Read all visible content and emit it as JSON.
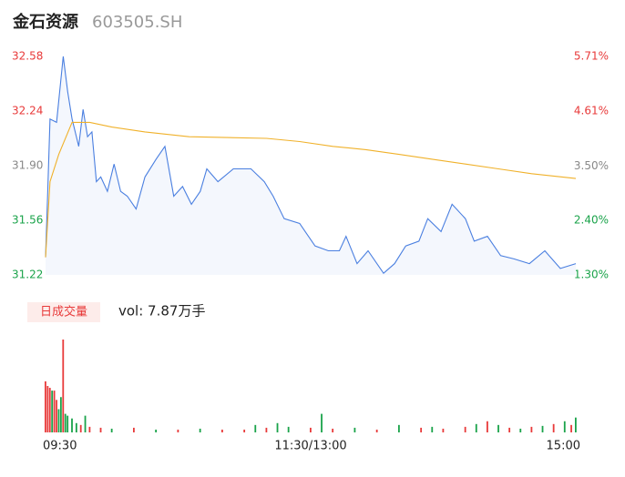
{
  "header": {
    "title": "金石资源",
    "code": "603505.SH"
  },
  "chart_data": [
    {
      "type": "line",
      "xlim": [
        0,
        240
      ],
      "xticks": [
        {
          "value": 0,
          "label": "09:30"
        },
        {
          "value": 120,
          "label": "11:30/13:00"
        },
        {
          "value": 240,
          "label": "15:00"
        }
      ],
      "ylim": [
        31.22,
        32.58
      ],
      "yticks": [
        32.58,
        32.24,
        31.9,
        31.56,
        31.22
      ],
      "ytick_labels": [
        "32.58",
        "32.24",
        "31.90",
        "31.56",
        "31.22"
      ],
      "ytick_colors": [
        "#e83a3a",
        "#e83a3a",
        "#888888",
        "#1aa34a",
        "#1aa34a"
      ],
      "y2lim": [
        1.3,
        5.71
      ],
      "y2ticks": [
        {
          "value": 5.71,
          "label": "5.71%"
        },
        {
          "value": 4.61,
          "label": "4.61%"
        },
        {
          "value": 3.5,
          "label": "3.50%"
        },
        {
          "value": 2.4,
          "label": "2.40%"
        },
        {
          "value": 1.3,
          "label": "1.30%"
        }
      ],
      "series": [
        {
          "color": "#4a7fe0",
          "fill": "#f4f7fd",
          "x": [
            0,
            1,
            2,
            5,
            8,
            10,
            12,
            15,
            17,
            19,
            21,
            23,
            25,
            28,
            31,
            34,
            37,
            41,
            45,
            50,
            54,
            58,
            62,
            66,
            70,
            73,
            78,
            85,
            93,
            99,
            103,
            108,
            115,
            122,
            128,
            133,
            136,
            141,
            146,
            153,
            158,
            163,
            169,
            173,
            179,
            184,
            190,
            194,
            200,
            206,
            212,
            219,
            226,
            233,
            240
          ],
          "values": [
            31.33,
            31.74,
            32.19,
            32.17,
            32.58,
            32.36,
            32.19,
            32.02,
            32.25,
            32.08,
            32.11,
            31.8,
            31.83,
            31.74,
            31.91,
            31.74,
            31.71,
            31.63,
            31.83,
            31.94,
            32.02,
            31.71,
            31.77,
            31.66,
            31.74,
            31.88,
            31.8,
            31.88,
            31.88,
            31.8,
            31.71,
            31.57,
            31.54,
            31.4,
            31.37,
            31.37,
            31.46,
            31.29,
            31.37,
            31.23,
            31.29,
            31.4,
            31.43,
            31.57,
            31.49,
            31.66,
            31.57,
            31.43,
            31.46,
            31.34,
            31.32,
            31.29,
            31.37,
            31.26,
            31.29
          ]
        },
        {
          "color": "#f0b12a",
          "x": [
            0,
            2,
            6,
            12,
            20,
            30,
            45,
            65,
            100,
            115,
            130,
            145,
            160,
            175,
            190,
            205,
            220,
            240
          ],
          "values": [
            31.33,
            31.8,
            31.97,
            32.17,
            32.17,
            32.14,
            32.11,
            32.08,
            32.07,
            32.05,
            32.02,
            32.0,
            31.97,
            31.94,
            31.91,
            31.88,
            31.85,
            31.82
          ]
        }
      ]
    },
    {
      "type": "bar",
      "label": "日成交量",
      "annotation": "vol: 7.87万手",
      "xlim": [
        0,
        240
      ],
      "ylim": [
        0,
        100
      ],
      "x": [
        0,
        1,
        2,
        3,
        4,
        5,
        6,
        7,
        8,
        9,
        10,
        12,
        14,
        16,
        18,
        20,
        25,
        30,
        40,
        50,
        60,
        70,
        80,
        90,
        95,
        100,
        105,
        110,
        120,
        125,
        130,
        140,
        150,
        160,
        170,
        175,
        180,
        190,
        195,
        200,
        205,
        210,
        215,
        220,
        225,
        230,
        235,
        238,
        240
      ],
      "values": [
        55,
        50,
        48,
        45,
        45,
        35,
        25,
        38,
        100,
        20,
        18,
        15,
        10,
        8,
        18,
        6,
        5,
        4,
        5,
        3,
        3,
        4,
        3,
        3,
        8,
        5,
        10,
        6,
        5,
        20,
        4,
        5,
        3,
        8,
        5,
        6,
        4,
        6,
        9,
        12,
        8,
        5,
        4,
        6,
        7,
        9,
        12,
        8,
        16
      ],
      "colors": [
        "#e83a3a",
        "#e83a3a",
        "#e83a3a",
        "#1aa34a",
        "#e83a3a",
        "#e83a3a",
        "#1aa34a",
        "#1aa34a",
        "#e83a3a",
        "#1aa34a",
        "#1aa34a",
        "#1aa34a",
        "#1aa34a",
        "#e83a3a",
        "#1aa34a",
        "#e83a3a",
        "#e83a3a",
        "#1aa34a",
        "#e83a3a",
        "#1aa34a",
        "#e83a3a",
        "#1aa34a",
        "#e83a3a",
        "#e83a3a",
        "#1aa34a",
        "#e83a3a",
        "#1aa34a",
        "#1aa34a",
        "#e83a3a",
        "#1aa34a",
        "#e83a3a",
        "#1aa34a",
        "#e83a3a",
        "#1aa34a",
        "#e83a3a",
        "#1aa34a",
        "#e83a3a",
        "#e83a3a",
        "#1aa34a",
        "#e83a3a",
        "#1aa34a",
        "#e83a3a",
        "#1aa34a",
        "#e83a3a",
        "#1aa34a",
        "#e83a3a",
        "#1aa34a",
        "#e83a3a",
        "#1aa34a"
      ]
    }
  ]
}
